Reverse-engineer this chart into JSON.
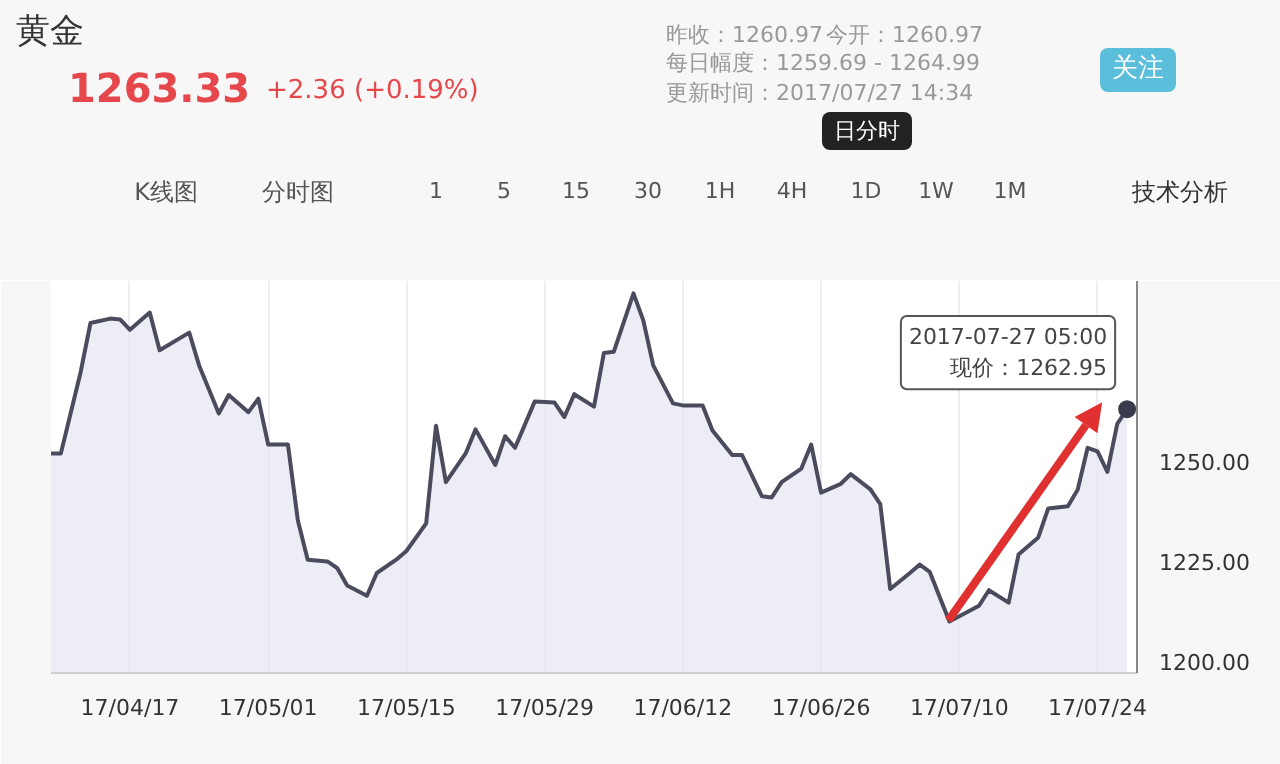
{
  "chart_data": {
    "type": "area",
    "title": "黄金",
    "subtitle": "1263.33",
    "x": [
      "2017-04-09",
      "2017-04-10",
      "2017-04-12",
      "2017-04-13",
      "2017-04-15",
      "2017-04-16",
      "2017-04-17",
      "2017-04-19",
      "2017-04-20",
      "2017-04-23",
      "2017-04-24",
      "2017-04-26",
      "2017-04-27",
      "2017-04-29",
      "2017-04-30",
      "2017-05-01",
      "2017-05-03",
      "2017-05-04",
      "2017-05-05",
      "2017-05-07",
      "2017-05-08",
      "2017-05-09",
      "2017-05-11",
      "2017-05-12",
      "2017-05-14",
      "2017-05-15",
      "2017-05-17",
      "2017-05-18",
      "2017-05-19",
      "2017-05-21",
      "2017-05-22",
      "2017-05-24",
      "2017-05-25",
      "2017-05-26",
      "2017-05-28",
      "2017-05-30",
      "2017-05-31",
      "2017-06-01",
      "2017-06-03",
      "2017-06-04",
      "2017-06-05",
      "2017-06-07",
      "2017-06-08",
      "2017-06-09",
      "2017-06-11",
      "2017-06-12",
      "2017-06-14",
      "2017-06-15",
      "2017-06-17",
      "2017-06-18",
      "2017-06-20",
      "2017-06-21",
      "2017-06-22",
      "2017-06-24",
      "2017-06-25",
      "2017-06-26",
      "2017-06-28",
      "2017-06-29",
      "2017-07-01",
      "2017-07-02",
      "2017-07-03",
      "2017-07-05",
      "2017-07-06",
      "2017-07-07",
      "2017-07-09",
      "2017-07-10",
      "2017-07-12",
      "2017-07-13",
      "2017-07-15",
      "2017-07-16",
      "2017-07-18",
      "2017-07-19",
      "2017-07-21",
      "2017-07-22",
      "2017-07-23",
      "2017-07-24",
      "2017-07-25",
      "2017-07-26",
      "2017-07-27"
    ],
    "series": [
      {
        "color": "#4a4c5e",
        "values": [
          1251.9,
          1251.9,
          1272.2,
          1284.5,
          1285.6,
          1285.4,
          1282.8,
          1287.1,
          1277.7,
          1282.1,
          1273.9,
          1261.9,
          1266.5,
          1262.2,
          1265.6,
          1254.1,
          1254.1,
          1235.2,
          1225.3,
          1224.9,
          1223.2,
          1218.9,
          1216.3,
          1222.0,
          1225.4,
          1227.5,
          1234.4,
          1258.8,
          1244.7,
          1251.9,
          1257.9,
          1249.0,
          1256.2,
          1253.3,
          1264.9,
          1264.6,
          1261.0,
          1266.7,
          1263.6,
          1277.0,
          1277.3,
          1291.9,
          1285.1,
          1273.9,
          1264.4,
          1263.9,
          1263.9,
          1257.6,
          1251.5,
          1251.5,
          1241.2,
          1240.9,
          1244.7,
          1248.1,
          1254.1,
          1242.1,
          1244.3,
          1246.7,
          1242.9,
          1239.2,
          1218.0,
          1222.0,
          1224.1,
          1222.3,
          1209.9,
          1211.2,
          1213.8,
          1217.7,
          1214.6,
          1226.6,
          1230.9,
          1238.1,
          1238.7,
          1242.9,
          1253.3,
          1252.4,
          1247.3,
          1259.3,
          1263.0
        ]
      }
    ],
    "xlim": [
      "2017-04-09",
      "2017-07-28"
    ],
    "xticks": [
      {
        "value": "2017-04-17",
        "label": "17/04/17"
      },
      {
        "value": "2017-05-01",
        "label": "17/05/01"
      },
      {
        "value": "2017-05-15",
        "label": "17/05/15"
      },
      {
        "value": "2017-05-29",
        "label": "17/05/29"
      },
      {
        "value": "2017-06-12",
        "label": "17/06/12"
      },
      {
        "value": "2017-06-26",
        "label": "17/06/26"
      },
      {
        "value": "2017-07-10",
        "label": "17/07/10"
      },
      {
        "value": "2017-07-24",
        "label": "17/07/24"
      }
    ],
    "ylim": [
      1197,
      1295
    ],
    "yticks": [
      {
        "value": 1200,
        "label": "1200.00"
      },
      {
        "value": 1225,
        "label": "1225.00"
      },
      {
        "value": 1250,
        "label": "1250.00"
      }
    ],
    "grid": "x",
    "annotations": [
      "+2.36",
      "(+0.19%)",
      "昨收：1260.97",
      "今开：1260.97",
      "每日幅度：1259.69 - 1264.99",
      "更新时间：2017/07/27 14:34",
      "关注",
      "日分时",
      "K线图",
      "分时图",
      "1",
      "5",
      "15",
      "30",
      "1H",
      "4H",
      "1D",
      "1W",
      "1M",
      "技术分析",
      {
        "text": "2017-07-27 05:00\n现价：1262.95",
        "x": "2017-07-27",
        "y": 1262.95
      }
    ]
  }
}
